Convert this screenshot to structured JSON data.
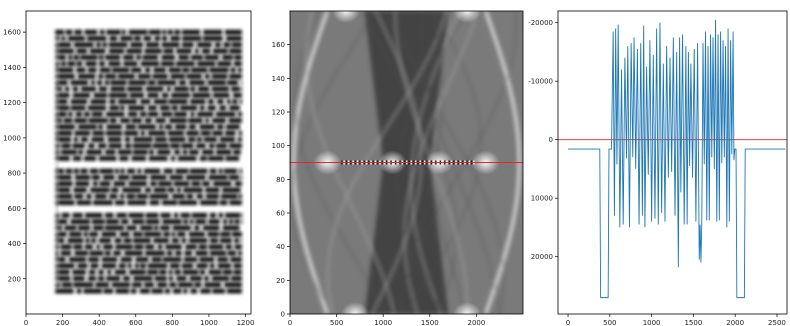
{
  "chart_data": [
    {
      "type": "image",
      "description": "blurred text-block image",
      "xticks": [
        0,
        200,
        400,
        600,
        800,
        1000,
        1200
      ],
      "yticks": [
        200,
        400,
        600,
        800,
        1000,
        1200,
        1400,
        1600
      ],
      "xlim": [
        0,
        1230
      ],
      "ylim": [
        1720,
        0
      ]
    },
    {
      "type": "image",
      "description": "radon transform sinogram with horizontal marker line",
      "xticks": [
        0,
        500,
        1000,
        1500,
        2000
      ],
      "yticks": [
        0,
        20,
        40,
        60,
        80,
        100,
        120,
        140,
        160
      ],
      "xlim": [
        0,
        2500
      ],
      "ylim": [
        180,
        0
      ],
      "hline": 90,
      "hline_color": "#e8232a"
    },
    {
      "type": "line",
      "series": [
        {
          "color": "#1f77b4",
          "points": [
            [
              0,
              1600
            ],
            [
              380,
              1600
            ],
            [
              390,
              27000
            ],
            [
              480,
              27000
            ],
            [
              490,
              1600
            ],
            [
              520,
              1600
            ],
            [
              540,
              -18500
            ],
            [
              555,
              13000
            ],
            [
              570,
              -19000
            ],
            [
              585,
              4200
            ],
            [
              600,
              -19700
            ],
            [
              620,
              15000
            ],
            [
              640,
              -12000
            ],
            [
              660,
              14500
            ],
            [
              680,
              -14000
            ],
            [
              700,
              3200
            ],
            [
              715,
              -16000
            ],
            [
              735,
              15000
            ],
            [
              755,
              -16500
            ],
            [
              775,
              3000
            ],
            [
              790,
              -17500
            ],
            [
              810,
              5000
            ],
            [
              830,
              -15500
            ],
            [
              850,
              14500
            ],
            [
              870,
              -16500
            ],
            [
              890,
              13000
            ],
            [
              905,
              -19500
            ],
            [
              920,
              15000
            ],
            [
              940,
              -12500
            ],
            [
              960,
              6000
            ],
            [
              980,
              -17000
            ],
            [
              1000,
              14000
            ],
            [
              1020,
              -14500
            ],
            [
              1040,
              13500
            ],
            [
              1060,
              -19000
            ],
            [
              1080,
              14500
            ],
            [
              1100,
              -20000
            ],
            [
              1120,
              12500
            ],
            [
              1140,
              -13000
            ],
            [
              1160,
              14000
            ],
            [
              1180,
              -16000
            ],
            [
              1200,
              6500
            ],
            [
              1220,
              -14000
            ],
            [
              1240,
              5500
            ],
            [
              1260,
              -17500
            ],
            [
              1280,
              13000
            ],
            [
              1300,
              -15000
            ],
            [
              1320,
              21800
            ],
            [
              1335,
              -17500
            ],
            [
              1350,
              9000
            ],
            [
              1370,
              -18000
            ],
            [
              1390,
              14500
            ],
            [
              1410,
              -16000
            ],
            [
              1425,
              14500
            ],
            [
              1440,
              -15000
            ],
            [
              1455,
              4500
            ],
            [
              1470,
              -13000
            ],
            [
              1490,
              6500
            ],
            [
              1510,
              -15500
            ],
            [
              1530,
              14000
            ],
            [
              1550,
              -16500
            ],
            [
              1570,
              20500
            ],
            [
              1580,
              14500
            ],
            [
              1590,
              21000
            ],
            [
              1600,
              14500
            ],
            [
              1615,
              -16500
            ],
            [
              1630,
              4200
            ],
            [
              1645,
              -18500
            ],
            [
              1660,
              13800
            ],
            [
              1675,
              -16000
            ],
            [
              1690,
              13800
            ],
            [
              1705,
              -18000
            ],
            [
              1720,
              3000
            ],
            [
              1735,
              -17500
            ],
            [
              1750,
              5000
            ],
            [
              1765,
              -20500
            ],
            [
              1780,
              14000
            ],
            [
              1795,
              -18000
            ],
            [
              1810,
              13800
            ],
            [
              1825,
              -18500
            ],
            [
              1840,
              4000
            ],
            [
              1855,
              -17000
            ],
            [
              1870,
              3000
            ],
            [
              1885,
              -16000
            ],
            [
              1900,
              15000
            ],
            [
              1915,
              -19000
            ],
            [
              1930,
              14000
            ],
            [
              1945,
              -17000
            ],
            [
              1960,
              2500
            ],
            [
              1975,
              -18500
            ],
            [
              1985,
              3500
            ],
            [
              1995,
              1600
            ],
            [
              2010,
              1600
            ],
            [
              2020,
              27000
            ],
            [
              2110,
              27000
            ],
            [
              2120,
              1600
            ],
            [
              2600,
              1600
            ]
          ]
        }
      ],
      "hline": 0,
      "hline_color": "#e8232a",
      "xticks": [
        0,
        500,
        1000,
        1500,
        2000,
        2500
      ],
      "yticks": [
        -20000,
        -10000,
        0,
        10000,
        20000
      ],
      "xlim": [
        -120,
        2620
      ],
      "ylim": [
        -22000,
        29800
      ]
    }
  ]
}
